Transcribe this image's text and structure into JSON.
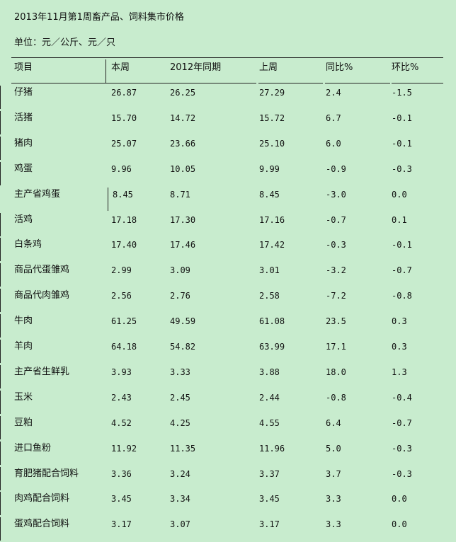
{
  "title": "2013年11月第1周畜产品、饲料集市价格",
  "unit": "单位：元／公斤、元／只",
  "headers": [
    "项目",
    "本周",
    "2012年同期",
    "上周",
    "同比%",
    "环比%"
  ],
  "rows": [
    [
      "仔猪",
      "26.87",
      "26.25",
      "27.29",
      "2.4",
      "-1.5"
    ],
    [
      "活猪",
      "15.70",
      "14.72",
      "15.72",
      "6.7",
      "-0.1"
    ],
    [
      "猪肉",
      "25.07",
      "23.66",
      "25.10",
      "6.0",
      "-0.1"
    ],
    [
      "鸡蛋",
      "9.96",
      "10.05",
      "9.99",
      "-0.9",
      "-0.3"
    ],
    [
      "主产省鸡蛋",
      "8.45",
      "8.71",
      "8.45",
      "-3.0",
      "0.0"
    ],
    [
      "活鸡",
      "17.18",
      "17.30",
      "17.16",
      "-0.7",
      "0.1"
    ],
    [
      "白条鸡",
      "17.40",
      "17.46",
      "17.42",
      "-0.3",
      "-0.1"
    ],
    [
      "商品代蛋雏鸡",
      "2.99",
      "3.09",
      "3.01",
      "-3.2",
      "-0.7"
    ],
    [
      "商品代肉雏鸡",
      "2.56",
      "2.76",
      "2.58",
      "-7.2",
      "-0.8"
    ],
    [
      "牛肉",
      "61.25",
      "49.59",
      "61.08",
      "23.5",
      "0.3"
    ],
    [
      "羊肉",
      "64.18",
      "54.82",
      "63.99",
      "17.1",
      "0.3"
    ],
    [
      "主产省生鲜乳",
      "3.93",
      "3.33",
      "3.88",
      "18.0",
      "1.3"
    ],
    [
      "玉米",
      "2.43",
      "2.45",
      "2.44",
      "-0.8",
      "-0.4"
    ],
    [
      "豆粕",
      "4.52",
      "4.25",
      "4.55",
      "6.4",
      "-0.7"
    ],
    [
      "进口鱼粉",
      "11.92",
      "11.35",
      "11.96",
      "5.0",
      "-0.3"
    ],
    [
      "育肥猪配合饲料",
      "3.36",
      "3.24",
      "3.37",
      "3.7",
      "-0.3"
    ],
    [
      "肉鸡配合饲料",
      "3.45",
      "3.34",
      "3.45",
      "3.3",
      "0.0"
    ],
    [
      "蛋鸡配合饲料",
      "3.17",
      "3.07",
      "3.17",
      "3.3",
      "0.0"
    ]
  ]
}
